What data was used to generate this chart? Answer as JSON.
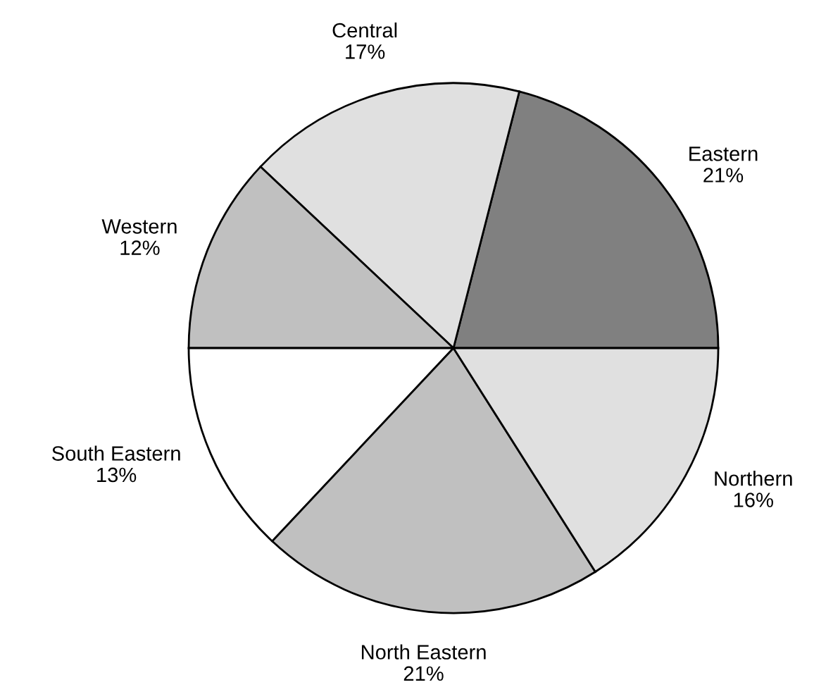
{
  "chart_data": {
    "type": "pie",
    "categories": [
      "Eastern",
      "Central",
      "Western",
      "South Eastern",
      "North Eastern",
      "Northern"
    ],
    "values": [
      21,
      17,
      12,
      13,
      21,
      16
    ],
    "value_labels": [
      "21%",
      "17%",
      "12%",
      "13%",
      "21%",
      "16%"
    ],
    "colors": [
      "#808080",
      "#e0e0e0",
      "#c0c0c0",
      "#ffffff",
      "#c0c0c0",
      "#e0e0e0"
    ],
    "legend": false
  }
}
